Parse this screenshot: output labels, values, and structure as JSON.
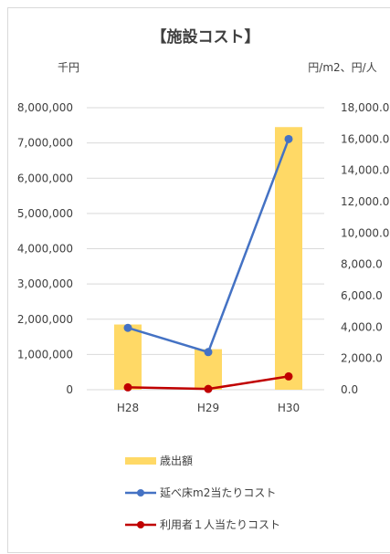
{
  "chart_data": {
    "type": "bar",
    "title": "【施設コスト】",
    "left_unit": "千円",
    "right_unit": "円/m2、円/人",
    "categories": [
      "H28",
      "H29",
      "H30"
    ],
    "left_axis": {
      "min": 0,
      "max": 8000000,
      "step": 1000000,
      "tick_labels": [
        "0",
        "1,000,000",
        "2,000,000",
        "3,000,000",
        "4,000,000",
        "5,000,000",
        "6,000,000",
        "7,000,000",
        "8,000,000"
      ]
    },
    "right_axis": {
      "min": 0,
      "max": 18000,
      "step": 2000,
      "tick_labels": [
        "0.0",
        "2,000.0",
        "4,000.0",
        "6,000.0",
        "8,000.0",
        "10,000.0",
        "12,000.0",
        "14,000.0",
        "16,000.0",
        "18,000.0"
      ]
    },
    "grid": true,
    "legend_position": "bottom",
    "series": [
      {
        "name": "歳出額",
        "type": "bar",
        "axis": "left",
        "color": "#FFD966",
        "values": [
          1850000,
          1150000,
          7450000
        ]
      },
      {
        "name": "延べ床m2当たりコスト",
        "type": "line",
        "axis": "right",
        "color": "#4472C4",
        "values": [
          3950,
          2400,
          16000
        ]
      },
      {
        "name": "利用者１人当たりコスト",
        "type": "line",
        "axis": "right",
        "color": "#C00000",
        "values": [
          150,
          50,
          850
        ]
      }
    ]
  }
}
